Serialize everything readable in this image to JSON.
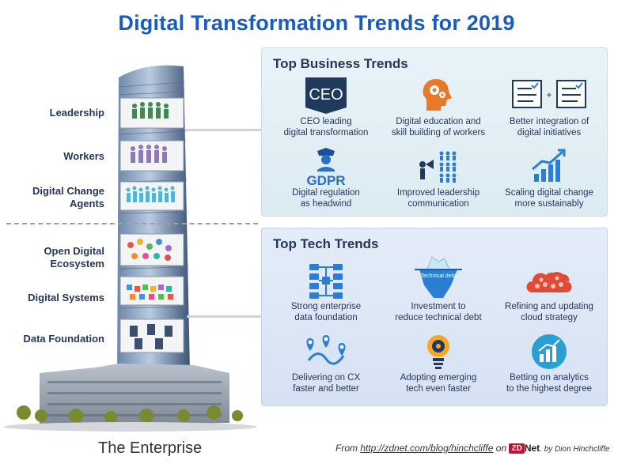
{
  "title": "Digital Transformation Trends for 2019",
  "enterprise_label": "The Enterprise",
  "left_labels": {
    "leadership": "Leadership",
    "workers": "Workers",
    "change_agents": "Digital Change Agents",
    "open_ecosystem": "Open Digital Ecosystem",
    "digital_systems": "Digital Systems",
    "data_foundation": "Data Foundation"
  },
  "business": {
    "title": "Top Business Trends",
    "ceo_logo": "CEO",
    "gdpr_logo": "GDPR",
    "items": [
      {
        "caption": "CEO leading\ndigital transformation",
        "icon": "ceo-badge-icon"
      },
      {
        "caption": "Digital education and\nskill building of workers",
        "icon": "head-gears-icon"
      },
      {
        "caption": "Better integration of\ndigital initiatives",
        "icon": "integration-icon"
      },
      {
        "caption": "Digital regulation\nas headwind",
        "icon": "gdpr-officer-icon"
      },
      {
        "caption": "Improved leadership\ncommunication",
        "icon": "megaphone-icon"
      },
      {
        "caption": "Scaling digital change\nmore sustainably",
        "icon": "growth-chart-icon"
      }
    ]
  },
  "tech": {
    "title": "Top Tech Trends",
    "iceberg_label": "Technical debt",
    "items": [
      {
        "caption": "Strong enterprise\ndata foundation",
        "icon": "database-network-icon"
      },
      {
        "caption": "Investment to\nreduce technical debt",
        "icon": "iceberg-icon"
      },
      {
        "caption": "Refining and updating\ncloud strategy",
        "icon": "cloud-icon"
      },
      {
        "caption": "Delivering on CX\nfaster and better",
        "icon": "map-pins-icon"
      },
      {
        "caption": "Adopting emerging\ntech even faster",
        "icon": "lightbulb-icon"
      },
      {
        "caption": "Betting on analytics\nto the highest degree",
        "icon": "analytics-icon"
      }
    ]
  },
  "footer": {
    "from": "From",
    "url": "http://zdnet.com/blog/hinchcliffe",
    "on": "on",
    "zd": "ZD",
    "net": "Net",
    "byline": ". by Dion Hinchcliffe"
  },
  "colors": {
    "title": "#1a5bbf",
    "navy": "#1f3a5c",
    "orange": "#e8782a",
    "blue": "#2a7fd4",
    "red": "#e04a36"
  }
}
